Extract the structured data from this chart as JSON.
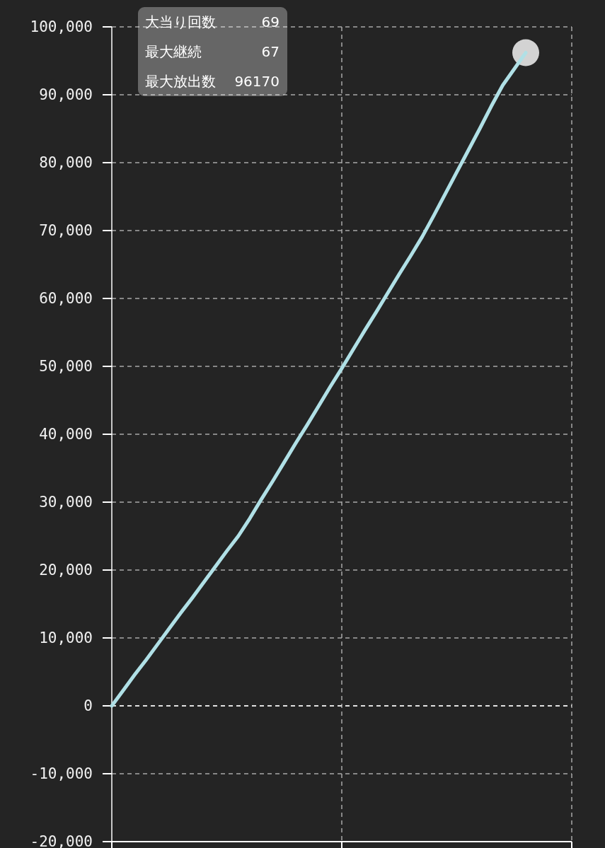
{
  "chart_data": {
    "type": "line",
    "categories": [
      null,
      null,
      null,
      null,
      null,
      null,
      null,
      null,
      null,
      null,
      null,
      null,
      null,
      null,
      null,
      null,
      null,
      null,
      null,
      null,
      null,
      null,
      null,
      null,
      null,
      null,
      null,
      null,
      null,
      null,
      null,
      null,
      null,
      null,
      null,
      null,
      null,
      null,
      null,
      null,
      null
    ],
    "series": [
      {
        "color": "#b0e0e6",
        "values": [
          0,
          2300,
          4600,
          6800,
          9100,
          11400,
          13700,
          15900,
          18200,
          20500,
          22800,
          25000,
          27600,
          30400,
          33100,
          35900,
          38700,
          41400,
          44200,
          47000,
          49700,
          52500,
          55300,
          58000,
          60800,
          63600,
          66300,
          69100,
          72200,
          75400,
          78600,
          81800,
          85000,
          88300,
          91400,
          93800,
          96200,
          null,
          null,
          null,
          null
        ]
      },
      {
        "type": "scatter",
        "color": "#d3d3d3",
        "marker": "circle",
        "values": [
          null,
          null,
          null,
          null,
          null,
          null,
          null,
          null,
          null,
          null,
          null,
          null,
          null,
          null,
          null,
          null,
          null,
          null,
          null,
          null,
          null,
          null,
          null,
          null,
          null,
          null,
          null,
          null,
          null,
          null,
          null,
          null,
          null,
          null,
          null,
          null,
          96200,
          null,
          null,
          null,
          null
        ]
      }
    ],
    "ylim": [
      -20000,
      100000
    ],
    "yticks": [
      {
        "value": -20000,
        "label": "-20,000"
      },
      {
        "value": -10000,
        "label": "-10,000"
      },
      0,
      {
        "value": 10000,
        "label": "10,000"
      },
      {
        "value": 20000,
        "label": "20,000"
      },
      {
        "value": 30000,
        "label": "30,000"
      },
      {
        "value": 40000,
        "label": "40,000"
      },
      {
        "value": 50000,
        "label": "50,000"
      },
      {
        "value": 60000,
        "label": "60,000"
      },
      {
        "value": 70000,
        "label": "70,000"
      },
      {
        "value": 80000,
        "label": "80,000"
      },
      {
        "value": 90000,
        "label": "90,000"
      },
      {
        "value": 100000,
        "label": "100,000"
      }
    ],
    "grid": true,
    "tick_labels": "y",
    "line_style": "solid",
    "ref_lines": [
      {
        "axis": "y",
        "value": 0,
        "color": "#ffffff",
        "line_style": "dashed"
      }
    ],
    "annotations": [
      "大当り回数",
      "69",
      "最大継続",
      "67",
      "最大放出数",
      "96170"
    ]
  }
}
